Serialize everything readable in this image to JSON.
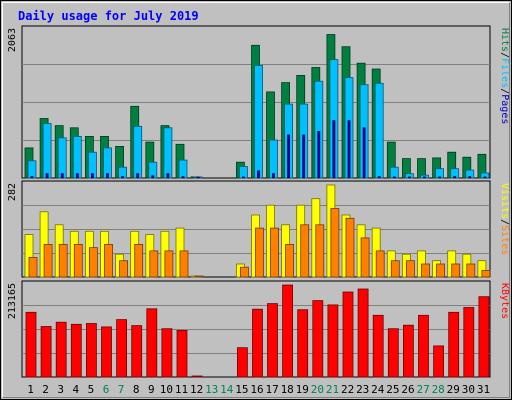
{
  "chart_data": {
    "type": "bar",
    "title": "Daily usage for July 2019",
    "categories": [
      "1",
      "2",
      "3",
      "4",
      "5",
      "6",
      "7",
      "8",
      "9",
      "10",
      "11",
      "12",
      "13",
      "14",
      "15",
      "16",
      "17",
      "18",
      "19",
      "20",
      "21",
      "22",
      "23",
      "24",
      "25",
      "26",
      "27",
      "28",
      "29",
      "30",
      "31"
    ],
    "weekend_days": [
      "6",
      "7",
      "13",
      "14",
      "20",
      "21",
      "27",
      "28"
    ],
    "panels": [
      {
        "name": "hits-files-pages",
        "ymax_label": "2063",
        "ymax": 2063,
        "axis_label_parts": [
          "Pages",
          "Files",
          "Hits"
        ],
        "series": [
          {
            "name": "Hits",
            "color": "#008040",
            "values": [
              420,
              830,
              730,
              700,
              580,
              580,
              440,
              1000,
              500,
              730,
              470,
              15,
              0,
              0,
              220,
              1850,
              1200,
              1330,
              1430,
              1540,
              2000,
              1830,
              1600,
              1520,
              500,
              270,
              270,
              280,
              360,
              290,
              330
            ]
          },
          {
            "name": "Files",
            "color": "#00c0ff",
            "values": [
              240,
              760,
              560,
              580,
              360,
              420,
              150,
              720,
              220,
              700,
              250,
              8,
              0,
              0,
              160,
              1570,
              530,
              1030,
              1030,
              1350,
              1650,
              1400,
              1300,
              1320,
              150,
              60,
              40,
              130,
              130,
              110,
              70
            ]
          },
          {
            "name": "Pages",
            "color": "#0000c0",
            "values": [
              20,
              60,
              60,
              60,
              60,
              60,
              20,
              60,
              30,
              60,
              20,
              2,
              0,
              0,
              10,
              100,
              60,
              600,
              600,
              650,
              800,
              800,
              700,
              20,
              10,
              10,
              10,
              10,
              20,
              20,
              10
            ]
          }
        ]
      },
      {
        "name": "visits-sites",
        "ymax_label": "282",
        "ymax": 282,
        "axis_label_parts": [
          "Sites",
          "Visits"
        ],
        "series": [
          {
            "name": "Visits",
            "color": "#ffff00",
            "values": [
              130,
              200,
              160,
              140,
              140,
              140,
              70,
              140,
              130,
              140,
              150,
              2,
              0,
              0,
              40,
              190,
              220,
              160,
              220,
              240,
              282,
              190,
              160,
              150,
              80,
              70,
              80,
              50,
              80,
              70,
              50
            ]
          },
          {
            "name": "Sites",
            "color": "#ff8000",
            "values": [
              60,
              100,
              100,
              100,
              90,
              100,
              50,
              100,
              80,
              80,
              80,
              1,
              0,
              0,
              30,
              150,
              150,
              100,
              160,
              160,
              210,
              180,
              120,
              80,
              50,
              50,
              40,
              40,
              40,
              40,
              20
            ]
          }
        ]
      },
      {
        "name": "kbytes",
        "ymax_label": "213165",
        "ymax": 213165,
        "axis_label_parts": [
          "KBytes"
        ],
        "series": [
          {
            "name": "KBytes",
            "color": "#ff0000",
            "values": [
              150000,
              117000,
              127000,
              122000,
              124000,
              116000,
              133000,
              119000,
              158000,
              112000,
              108000,
              1000,
              0,
              0,
              68000,
              157000,
              170000,
              213165,
              156000,
              177000,
              167000,
              197000,
              204000,
              143000,
              112000,
              120000,
              143000,
              72000,
              150000,
              161000,
              186000
            ]
          }
        ]
      }
    ]
  }
}
